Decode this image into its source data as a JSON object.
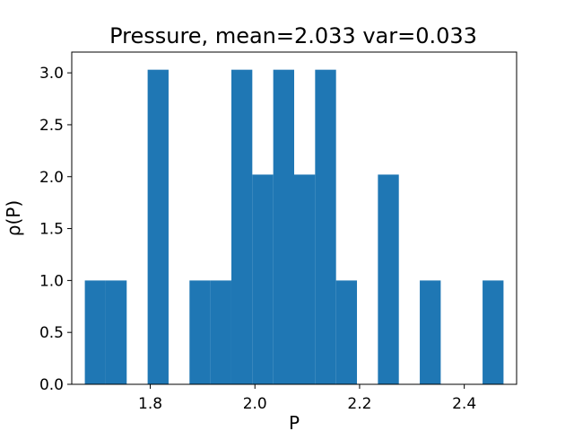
{
  "chart_data": {
    "type": "bar",
    "title": "Pressure, mean=2.033 var=0.033",
    "xlabel": "P",
    "ylabel": "ρ(P)",
    "xlim": [
      1.65,
      2.5
    ],
    "ylim": [
      0,
      3.2
    ],
    "xticks": [
      1.8,
      2.0,
      2.2,
      2.4
    ],
    "xtick_labels": [
      "1.8",
      "2.0",
      "2.2",
      "2.4"
    ],
    "yticks": [
      0.0,
      0.5,
      1.0,
      1.5,
      2.0,
      2.5,
      3.0
    ],
    "ytick_labels": [
      "0.0",
      "0.5",
      "1.0",
      "1.5",
      "2.0",
      "2.5",
      "3.0"
    ],
    "grid": false,
    "color": "#1f77b4",
    "bins": [
      {
        "x0": 1.675,
        "x1": 1.715,
        "value": 1
      },
      {
        "x0": 1.715,
        "x1": 1.755,
        "value": 1
      },
      {
        "x0": 1.795,
        "x1": 1.835,
        "value": 3.03
      },
      {
        "x0": 1.875,
        "x1": 1.915,
        "value": 1
      },
      {
        "x0": 1.915,
        "x1": 1.955,
        "value": 1
      },
      {
        "x0": 1.955,
        "x1": 1.995,
        "value": 3.03
      },
      {
        "x0": 1.995,
        "x1": 2.035,
        "value": 2.02
      },
      {
        "x0": 2.035,
        "x1": 2.075,
        "value": 3.03
      },
      {
        "x0": 2.075,
        "x1": 2.115,
        "value": 2.02
      },
      {
        "x0": 2.115,
        "x1": 2.155,
        "value": 3.03
      },
      {
        "x0": 2.155,
        "x1": 2.195,
        "value": 1
      },
      {
        "x0": 2.235,
        "x1": 2.275,
        "value": 2.02
      },
      {
        "x0": 2.315,
        "x1": 2.355,
        "value": 1
      },
      {
        "x0": 2.435,
        "x1": 2.475,
        "value": 1
      }
    ]
  }
}
